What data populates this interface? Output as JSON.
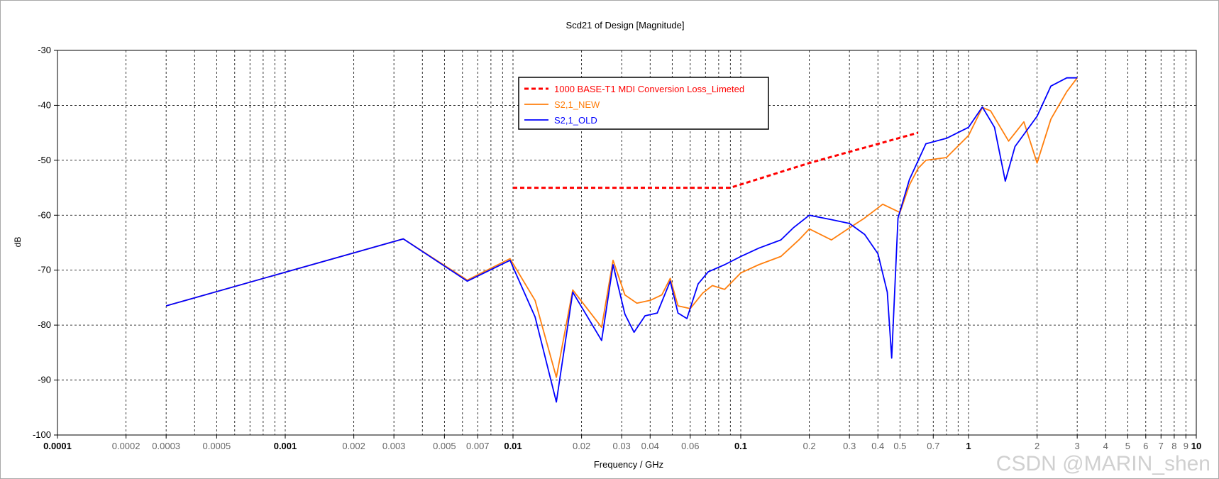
{
  "chart_data": {
    "type": "line",
    "title": "Scd21 of Design [Magnitude]",
    "xlabel": "Frequency / GHz",
    "ylabel": "dB",
    "xscale": "log",
    "xlim": [
      0.0001,
      10
    ],
    "ylim": [
      -100,
      -30
    ],
    "grid": true,
    "legend_position": "top-left",
    "watermark": "CSDN @MARIN_shen",
    "yticks": [
      {
        "value": -30,
        "label": "-30"
      },
      {
        "value": -40,
        "label": "-40"
      },
      {
        "value": -50,
        "label": "-50"
      },
      {
        "value": -60,
        "label": "-60"
      },
      {
        "value": -70,
        "label": "-70"
      },
      {
        "value": -80,
        "label": "-80"
      },
      {
        "value": -90,
        "label": "-90"
      },
      {
        "value": -100,
        "label": "-100"
      }
    ],
    "xticks": [
      {
        "value": 0.0001,
        "label": "0.0001",
        "major": true
      },
      {
        "value": 0.0002,
        "label": "0.0002",
        "major": false
      },
      {
        "value": 0.0003,
        "label": "0.0003",
        "major": false
      },
      {
        "value": 0.0005,
        "label": "0.0005",
        "major": false
      },
      {
        "value": 0.001,
        "label": "0.001",
        "major": true
      },
      {
        "value": 0.002,
        "label": "0.002",
        "major": false
      },
      {
        "value": 0.003,
        "label": "0.003",
        "major": false
      },
      {
        "value": 0.005,
        "label": "0.005",
        "major": false
      },
      {
        "value": 0.007,
        "label": "0.007",
        "major": false
      },
      {
        "value": 0.01,
        "label": "0.01",
        "major": true
      },
      {
        "value": 0.02,
        "label": "0.02",
        "major": false
      },
      {
        "value": 0.03,
        "label": "0.03",
        "major": false
      },
      {
        "value": 0.04,
        "label": "0.04",
        "major": false
      },
      {
        "value": 0.06,
        "label": "0.06",
        "major": false
      },
      {
        "value": 0.1,
        "label": "0.1",
        "major": true
      },
      {
        "value": 0.2,
        "label": "0.2",
        "major": false
      },
      {
        "value": 0.3,
        "label": "0.3",
        "major": false
      },
      {
        "value": 0.4,
        "label": "0.4",
        "major": false
      },
      {
        "value": 0.5,
        "label": "0.5",
        "major": false
      },
      {
        "value": 0.7,
        "label": "0.7",
        "major": false
      },
      {
        "value": 1,
        "label": "1",
        "major": true
      },
      {
        "value": 2,
        "label": "2",
        "major": false
      },
      {
        "value": 3,
        "label": "3",
        "major": false
      },
      {
        "value": 4,
        "label": "4",
        "major": false
      },
      {
        "value": 5,
        "label": "5",
        "major": false
      },
      {
        "value": 6,
        "label": "6",
        "major": false
      },
      {
        "value": 7,
        "label": "7",
        "major": false
      },
      {
        "value": 8,
        "label": "8",
        "major": false
      },
      {
        "value": 9,
        "label": "9",
        "major": false
      },
      {
        "value": 10,
        "label": "10",
        "major": true
      }
    ],
    "series": [
      {
        "name": "1000 BASE-T1 MDI Conversion Loss_Limeted",
        "color": "#ff0000",
        "style": "dashed",
        "points": [
          [
            0.01,
            -55
          ],
          [
            0.09,
            -55
          ],
          [
            0.2,
            -50.5
          ],
          [
            0.6,
            -45
          ]
        ]
      },
      {
        "name": "S2,1_NEW",
        "color": "#ff7f0e",
        "style": "solid",
        "points": [
          [
            0.0003,
            -76.5
          ],
          [
            0.0033,
            -64.3
          ],
          [
            0.0063,
            -71.8
          ],
          [
            0.0097,
            -67.9
          ],
          [
            0.0125,
            -75.5
          ],
          [
            0.0155,
            -89.5
          ],
          [
            0.0183,
            -73.6
          ],
          [
            0.0245,
            -80.4
          ],
          [
            0.0275,
            -68.2
          ],
          [
            0.031,
            -74.5
          ],
          [
            0.035,
            -76.0
          ],
          [
            0.04,
            -75.5
          ],
          [
            0.045,
            -74.5
          ],
          [
            0.049,
            -71.5
          ],
          [
            0.053,
            -76.5
          ],
          [
            0.06,
            -77.0
          ],
          [
            0.068,
            -74.2
          ],
          [
            0.075,
            -72.8
          ],
          [
            0.085,
            -73.5
          ],
          [
            0.1,
            -70.5
          ],
          [
            0.12,
            -69.0
          ],
          [
            0.15,
            -67.5
          ],
          [
            0.18,
            -64.5
          ],
          [
            0.2,
            -62.5
          ],
          [
            0.25,
            -64.5
          ],
          [
            0.3,
            -62.3
          ],
          [
            0.35,
            -60.5
          ],
          [
            0.42,
            -58.0
          ],
          [
            0.5,
            -59.5
          ],
          [
            0.55,
            -54.5
          ],
          [
            0.6,
            -51.5
          ],
          [
            0.65,
            -50.0
          ],
          [
            0.8,
            -49.5
          ],
          [
            1.0,
            -45.5
          ],
          [
            1.15,
            -40.4
          ],
          [
            1.25,
            -41.0
          ],
          [
            1.5,
            -46.5
          ],
          [
            1.75,
            -43.0
          ],
          [
            2.0,
            -50.5
          ],
          [
            2.3,
            -42.5
          ],
          [
            2.7,
            -37.5
          ],
          [
            3.0,
            -35.0
          ]
        ]
      },
      {
        "name": "S2,1_OLD",
        "color": "#0000ff",
        "style": "solid",
        "points": [
          [
            0.0003,
            -76.5
          ],
          [
            0.0033,
            -64.3
          ],
          [
            0.0063,
            -72.0
          ],
          [
            0.0097,
            -68.2
          ],
          [
            0.0125,
            -78.5
          ],
          [
            0.0155,
            -94.0
          ],
          [
            0.0183,
            -74.0
          ],
          [
            0.0245,
            -82.8
          ],
          [
            0.0275,
            -69.0
          ],
          [
            0.031,
            -78.0
          ],
          [
            0.034,
            -81.3
          ],
          [
            0.038,
            -78.3
          ],
          [
            0.043,
            -77.8
          ],
          [
            0.049,
            -72.0
          ],
          [
            0.053,
            -77.8
          ],
          [
            0.058,
            -78.8
          ],
          [
            0.065,
            -72.5
          ],
          [
            0.072,
            -70.3
          ],
          [
            0.085,
            -69.0
          ],
          [
            0.1,
            -67.5
          ],
          [
            0.12,
            -66.0
          ],
          [
            0.15,
            -64.5
          ],
          [
            0.17,
            -62.3
          ],
          [
            0.2,
            -60.0
          ],
          [
            0.25,
            -60.8
          ],
          [
            0.3,
            -61.5
          ],
          [
            0.35,
            -63.5
          ],
          [
            0.4,
            -67.0
          ],
          [
            0.44,
            -74.0
          ],
          [
            0.46,
            -86.0
          ],
          [
            0.49,
            -60.5
          ],
          [
            0.55,
            -53.5
          ],
          [
            0.65,
            -47.0
          ],
          [
            0.8,
            -46.0
          ],
          [
            1.0,
            -44.0
          ],
          [
            1.15,
            -40.3
          ],
          [
            1.3,
            -44.0
          ],
          [
            1.45,
            -53.8
          ],
          [
            1.6,
            -47.5
          ],
          [
            2.0,
            -42.0
          ],
          [
            2.3,
            -36.5
          ],
          [
            2.7,
            -35.0
          ],
          [
            3.0,
            -35.0
          ]
        ]
      }
    ]
  }
}
